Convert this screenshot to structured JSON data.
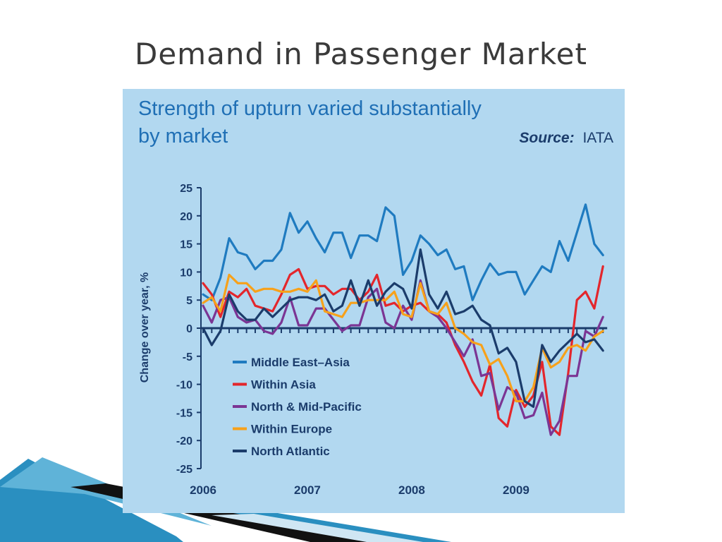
{
  "slide": {
    "title": "Demand in Passenger Market"
  },
  "chart_data": {
    "type": "line",
    "title_line1": "Strength of upturn varied substantially",
    "title_line2": "by market",
    "source_label": "Source:",
    "source_value": "IATA",
    "ylabel": "Change over year, %",
    "xlabel": "",
    "ylim": [
      -25,
      25
    ],
    "yticks": [
      25,
      20,
      15,
      10,
      5,
      0,
      -5,
      -10,
      -15,
      -20,
      -25
    ],
    "x_tick_labels": [
      "2006",
      "2007",
      "2008",
      "2009"
    ],
    "x_start": "2006-01",
    "x_frequency": "monthly",
    "grid": false,
    "legend_position": "bottom-left",
    "series": [
      {
        "name": "Middle East–Asia",
        "color": "#1f7bc0",
        "values": [
          6,
          5,
          9,
          16,
          13.5,
          13,
          10.5,
          12,
          12,
          14,
          20.5,
          17,
          19,
          16,
          13.5,
          17,
          17,
          12.5,
          16.5,
          16.5,
          15.5,
          21.5,
          20,
          9.5,
          12,
          16.5,
          15,
          13,
          14,
          10.5,
          11,
          5,
          8.5,
          11.5,
          9.5,
          10,
          10,
          6,
          8.5,
          11,
          10,
          15.5,
          12,
          17,
          22,
          15,
          13
        ]
      },
      {
        "name": "Within Asia",
        "color": "#e3262c",
        "values": [
          8,
          6,
          2,
          6.5,
          5.5,
          7,
          4,
          3.5,
          3,
          6,
          9.5,
          10.5,
          7,
          7.5,
          7.5,
          6,
          7,
          7,
          5,
          6.5,
          9.5,
          4,
          4.5,
          3,
          4,
          4.5,
          3,
          2.5,
          1,
          -3,
          -6,
          -9.5,
          -12,
          -6.5,
          -16,
          -17.5,
          -11,
          -14,
          -12,
          -6,
          -17.5,
          -19,
          -8,
          5,
          6.5,
          3.5,
          11
        ]
      },
      {
        "name": "North & Mid-Pacific",
        "color": "#7b3594",
        "values": [
          4,
          1,
          5,
          5.5,
          2,
          1,
          1.5,
          -0.5,
          -1,
          1,
          5.5,
          0.5,
          0.5,
          3.5,
          3.5,
          1.5,
          -0.5,
          0.5,
          0.5,
          5.5,
          7,
          1,
          0,
          4,
          1.5,
          8.5,
          3,
          2,
          0,
          -2.5,
          -5,
          -2,
          -8.5,
          -8,
          -14.5,
          -10.5,
          -11.5,
          -16,
          -15.5,
          -11.5,
          -19,
          -16.5,
          -8.5,
          -8.5,
          -0.5,
          -1.5,
          2
        ]
      },
      {
        "name": "Within Europe",
        "color": "#f7a11a",
        "values": [
          4.5,
          5.5,
          3,
          9.5,
          8,
          8,
          6.5,
          7,
          7,
          6.5,
          6.5,
          7,
          6.5,
          8.5,
          3,
          2.5,
          2,
          4.5,
          4.5,
          5,
          5,
          5,
          6.5,
          2.5,
          2,
          8,
          3,
          2.5,
          4.5,
          0,
          -1,
          -2.5,
          -3,
          -6.5,
          -5.5,
          -8.5,
          -13,
          -13,
          -10.5,
          -3.5,
          -7,
          -6,
          -3.5,
          -3,
          -4,
          -1.5,
          -0.5
        ]
      },
      {
        "name": "North Atlantic",
        "color": "#1b3c6b",
        "values": [
          0,
          -3,
          -0.5,
          6,
          3,
          1.5,
          1.5,
          3.5,
          2,
          3.5,
          5,
          5.5,
          5.5,
          5,
          6,
          3,
          4,
          8.5,
          4,
          8.5,
          4,
          6.5,
          8,
          7,
          3.5,
          14,
          6,
          3.5,
          6.5,
          2.5,
          3,
          4,
          1.5,
          0.5,
          -4.5,
          -3.5,
          -6,
          -13,
          -14,
          -3,
          -6,
          -4,
          -2.5,
          -1,
          -2.5,
          -2,
          -4
        ]
      }
    ]
  }
}
